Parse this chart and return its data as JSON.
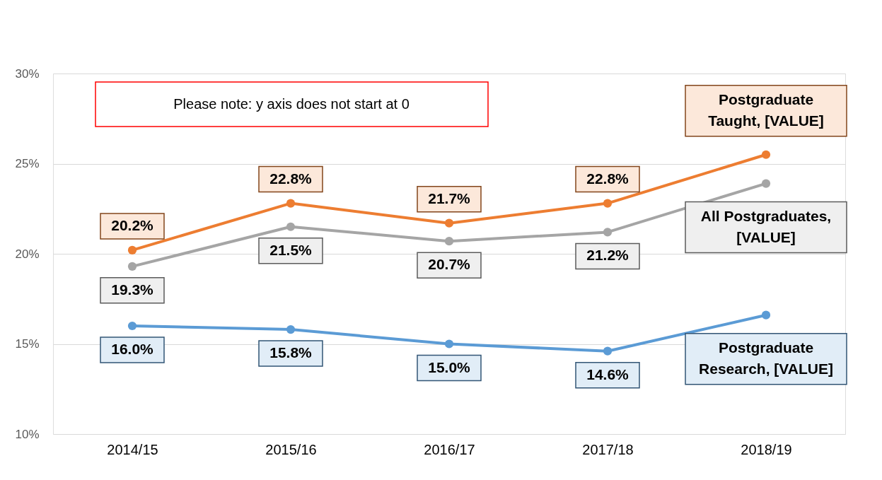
{
  "chart_data": {
    "type": "line",
    "categories": [
      "2014/15",
      "2015/16",
      "2016/17",
      "2017/18",
      "2018/19"
    ],
    "series": [
      {
        "name": "Postgraduate Taught",
        "color": "#ed7d31",
        "values": [
          20.2,
          22.8,
          21.7,
          22.8,
          25.5
        ],
        "value_labels": [
          "20.2%",
          "22.8%",
          "21.7%",
          "22.8%",
          ", [VALUE]"
        ]
      },
      {
        "name": "All Postgraduates",
        "color": "#a5a5a5",
        "values": [
          19.3,
          21.5,
          20.7,
          21.2,
          23.9
        ],
        "value_labels": [
          "19.3%",
          "21.5%",
          "20.7%",
          "21.2%",
          ", [VALUE]"
        ]
      },
      {
        "name": "Postgraduate Research",
        "color": "#5b9bd5",
        "values": [
          16.0,
          15.8,
          15.0,
          14.6,
          16.6
        ],
        "value_labels": [
          "16.0%",
          "15.8%",
          "15.0%",
          "14.6%",
          ", [VALUE]"
        ]
      }
    ],
    "ylim": [
      10,
      30
    ],
    "yticks": [
      {
        "value": 10,
        "label": "10%"
      },
      {
        "value": 15,
        "label": "15%"
      },
      {
        "value": 20,
        "label": "20%"
      },
      {
        "value": 25,
        "label": "25%"
      },
      {
        "value": 30,
        "label": "30%"
      }
    ],
    "grid": "y",
    "marker": "circle",
    "line_style": "solid",
    "legend": false,
    "annotations": [
      "Please note: y axis does not start at 0"
    ]
  }
}
